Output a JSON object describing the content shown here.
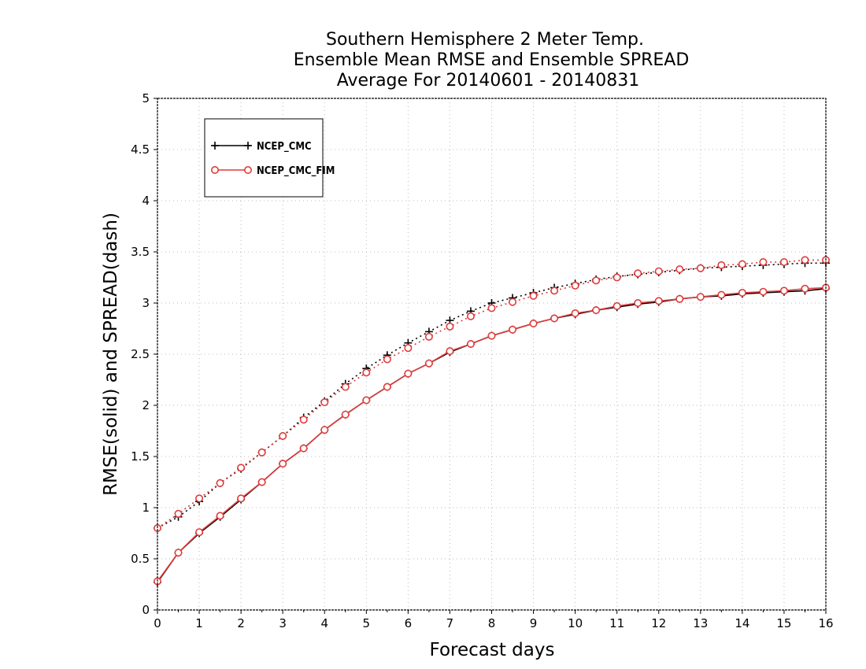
{
  "chart_data": {
    "type": "line",
    "title": [
      "Southern Hemisphere 2 Meter Temp.",
      "Ensemble Mean RMSE and Ensemble SPREAD",
      "Average For 20140601 - 20140831"
    ],
    "xlabel": "Forecast days",
    "ylabel": "RMSE(solid) and SPREAD(dash)",
    "xlim": [
      0,
      16
    ],
    "ylim": [
      0,
      5
    ],
    "xticks": [
      "0",
      "1",
      "2",
      "3",
      "4",
      "5",
      "6",
      "7",
      "8",
      "9",
      "10",
      "11",
      "12",
      "13",
      "14",
      "15",
      "16"
    ],
    "yticks": [
      "0",
      "0.5",
      "1",
      "1.5",
      "2",
      "2.5",
      "3",
      "3.5",
      "4",
      "4.5",
      "5"
    ],
    "grid": true,
    "legend_position": "top-left",
    "x": [
      0,
      0.5,
      1,
      1.5,
      2,
      2.5,
      3,
      3.5,
      4,
      4.5,
      5,
      5.5,
      6,
      6.5,
      7,
      7.5,
      8,
      8.5,
      9,
      9.5,
      10,
      10.5,
      11,
      11.5,
      12,
      12.5,
      13,
      13.5,
      14,
      14.5,
      15,
      15.5,
      16
    ],
    "series": [
      {
        "name": "NCEP_CMC",
        "color": "#000000",
        "marker": "plus",
        "rmse": [
          0.27,
          0.56,
          0.75,
          0.91,
          1.08,
          1.25,
          1.43,
          1.58,
          1.76,
          1.91,
          2.05,
          2.18,
          2.31,
          2.41,
          2.52,
          2.6,
          2.68,
          2.74,
          2.8,
          2.85,
          2.89,
          2.93,
          2.96,
          2.99,
          3.01,
          3.04,
          3.06,
          3.07,
          3.09,
          3.1,
          3.11,
          3.12,
          3.14
        ],
        "spread": [
          0.8,
          0.91,
          1.06,
          1.24,
          1.38,
          1.54,
          1.7,
          1.88,
          2.04,
          2.21,
          2.36,
          2.49,
          2.61,
          2.72,
          2.83,
          2.92,
          3.0,
          3.05,
          3.1,
          3.15,
          3.19,
          3.23,
          3.26,
          3.28,
          3.3,
          3.32,
          3.34,
          3.35,
          3.36,
          3.37,
          3.38,
          3.39,
          3.39
        ]
      },
      {
        "name": "NCEP_CMC_FIM",
        "color": "#e03c3c",
        "marker": "circle",
        "rmse": [
          0.28,
          0.56,
          0.76,
          0.92,
          1.09,
          1.25,
          1.43,
          1.58,
          1.76,
          1.91,
          2.05,
          2.18,
          2.31,
          2.41,
          2.53,
          2.6,
          2.68,
          2.74,
          2.8,
          2.85,
          2.9,
          2.93,
          2.97,
          3.0,
          3.02,
          3.04,
          3.06,
          3.08,
          3.1,
          3.11,
          3.12,
          3.14,
          3.15
        ],
        "spread": [
          0.8,
          0.94,
          1.09,
          1.24,
          1.39,
          1.54,
          1.7,
          1.86,
          2.03,
          2.18,
          2.32,
          2.45,
          2.56,
          2.67,
          2.77,
          2.87,
          2.95,
          3.01,
          3.07,
          3.12,
          3.17,
          3.22,
          3.25,
          3.29,
          3.31,
          3.33,
          3.34,
          3.37,
          3.38,
          3.4,
          3.4,
          3.42,
          3.42
        ]
      }
    ]
  }
}
